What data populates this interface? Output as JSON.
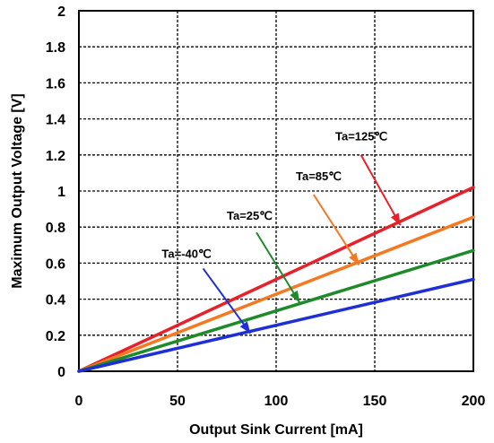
{
  "chart_data": {
    "type": "line",
    "xlabel": "Output Sink Current [mA]",
    "ylabel": "Maximum Output Voltage [V]",
    "xlim": [
      0,
      200
    ],
    "ylim": [
      0,
      2
    ],
    "x_ticks": [
      "0",
      "50",
      "100",
      "150",
      "200"
    ],
    "y_ticks": [
      "0",
      "0.2",
      "0.4",
      "0.6",
      "0.8",
      "1",
      "1.2",
      "1.4",
      "1.6",
      "1.8",
      "2"
    ],
    "grid": true,
    "series": [
      {
        "name": "Ta=125℃",
        "color": "#e8202a",
        "x": [
          0,
          200
        ],
        "y": [
          0,
          1.02
        ]
      },
      {
        "name": "Ta=85℃",
        "color": "#f47920",
        "x": [
          0,
          200
        ],
        "y": [
          0,
          0.855
        ]
      },
      {
        "name": "Ta=25℃",
        "color": "#1f8a2a",
        "x": [
          0,
          200
        ],
        "y": [
          0,
          0.67
        ]
      },
      {
        "name": "Ta=-40℃",
        "color": "#1f2fd6",
        "x": [
          0,
          200
        ],
        "y": [
          0,
          0.51
        ]
      }
    ],
    "annotations": [
      {
        "text": "Ta=125℃",
        "series": 0,
        "label_at": [
          130,
          1.28
        ],
        "arrow_from": [
          143,
          1.2
        ],
        "arrow_to": [
          163,
          0.81
        ]
      },
      {
        "text": "Ta=85℃",
        "series": 1,
        "label_at": [
          110,
          1.06
        ],
        "arrow_from": [
          119,
          0.98
        ],
        "arrow_to": [
          142,
          0.59
        ]
      },
      {
        "text": "Ta=25℃",
        "series": 2,
        "label_at": [
          75,
          0.84
        ],
        "arrow_from": [
          90,
          0.77
        ],
        "arrow_to": [
          112,
          0.38
        ]
      },
      {
        "text": "Ta=-40℃",
        "series": 3,
        "label_at": [
          42,
          0.63
        ],
        "arrow_from": [
          63,
          0.57
        ],
        "arrow_to": [
          87,
          0.21
        ]
      }
    ]
  }
}
